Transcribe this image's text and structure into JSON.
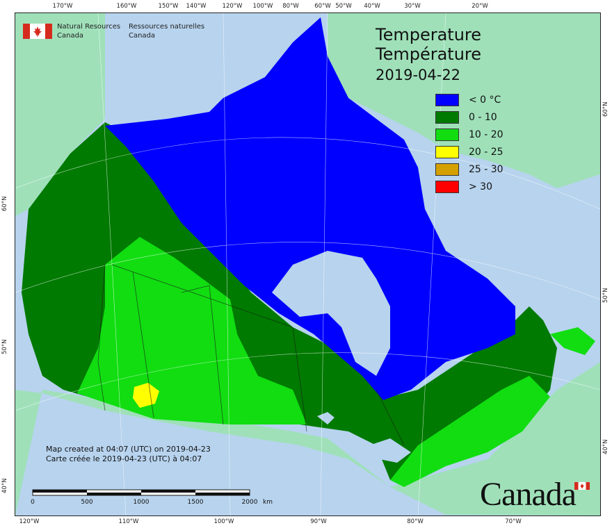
{
  "title_en": "Temperature",
  "title_fr": "Température",
  "date": "2019-04-22",
  "agency": {
    "name_en_1": "Natural Resources",
    "name_en_2": "Canada",
    "name_fr_1": "Ressources naturelles",
    "name_fr_2": "Canada"
  },
  "legend": [
    {
      "label": "< 0 °C",
      "color": "#0000ff"
    },
    {
      "label": "0 - 10",
      "color": "#007a00"
    },
    {
      "label": "10 - 20",
      "color": "#11dd11"
    },
    {
      "label": "20 - 25",
      "color": "#ffff00"
    },
    {
      "label": "25 - 30",
      "color": "#d4a000"
    },
    {
      "label": "> 30",
      "color": "#ff0000"
    }
  ],
  "credit_en": "Map created at 04:07 (UTC) on 2019-04-23",
  "credit_fr": "Carte créée le 2019-04-23 (UTC) à 04:07",
  "scale": {
    "labels": [
      "0",
      "500",
      "1000",
      "1500",
      "2000"
    ],
    "unit": "km"
  },
  "wordmark": "Canada",
  "ticks": {
    "top": [
      "170°W",
      "160°W",
      "150°W",
      "140°W",
      "120°W",
      "100°W",
      "80°W",
      "60°W",
      "50°W",
      "40°W",
      "30°W",
      "20°W"
    ],
    "bottom": [
      "120°W",
      "110°W",
      "100°W",
      "90°W",
      "80°W",
      "70°W"
    ],
    "left": [
      "60°N",
      "50°N",
      "40°N"
    ],
    "right": [
      "60°N",
      "50°N",
      "40°N"
    ]
  }
}
